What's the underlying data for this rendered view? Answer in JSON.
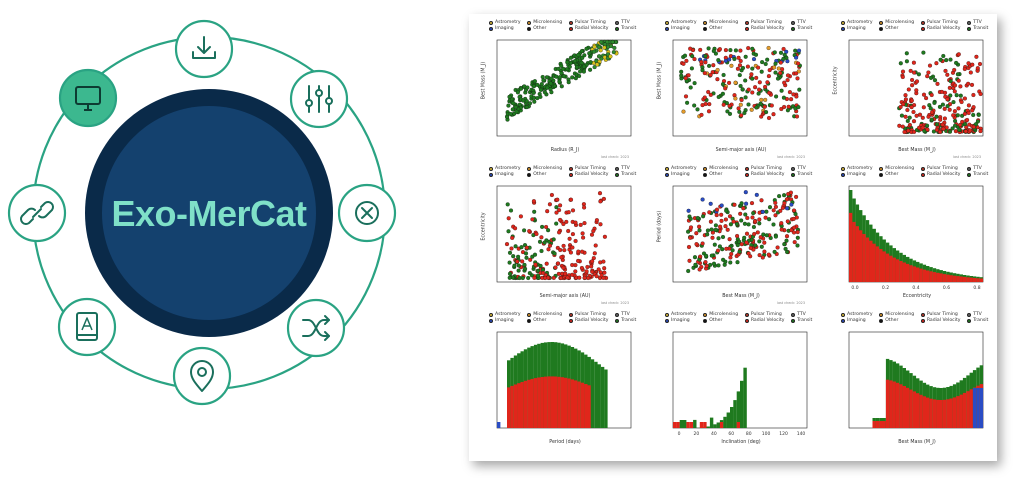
{
  "logo": {
    "title": "Exo-MerCat",
    "colors": {
      "ring": "#2aa383",
      "node_bg": "#ffffff",
      "node_active_bg": "#3cb88f",
      "disc_outer": "#0a2a49",
      "disc_inner": "#14416e",
      "text": "#7fe0c8"
    },
    "nodes": [
      {
        "name": "download-icon",
        "active": false
      },
      {
        "name": "sliders-icon",
        "active": false
      },
      {
        "name": "close-circle-icon",
        "active": false
      },
      {
        "name": "shuffle-icon",
        "active": false
      },
      {
        "name": "location-pin-icon",
        "active": false
      },
      {
        "name": "book-icon",
        "active": false
      },
      {
        "name": "link-icon",
        "active": false
      },
      {
        "name": "monitor-icon",
        "active": true
      }
    ]
  },
  "legend": {
    "items": [
      {
        "label": "Astrometry",
        "color": "#e3c13a"
      },
      {
        "label": "Microlensing",
        "color": "#e39b2a"
      },
      {
        "label": "Pulsar Timing",
        "color": "#c43a2a"
      },
      {
        "label": "TTV",
        "color": "#666666"
      },
      {
        "label": "Imaging",
        "color": "#2a4cc4"
      },
      {
        "label": "Other",
        "color": "#111111"
      },
      {
        "label": "Radial Velocity",
        "color": "#e0261b"
      },
      {
        "label": "Transit",
        "color": "#1f7a1f"
      }
    ]
  },
  "panels": [
    {
      "xlabel": "Radius (R_J)",
      "ylabel": "Best Mass (M_J)",
      "watermark": "last check: 2023"
    },
    {
      "xlabel": "Semi-major axis (AU)",
      "ylabel": "Best Mass (M_J)",
      "watermark": "last check: 2023"
    },
    {
      "xlabel": "Best Mass (M_J)",
      "ylabel": "Eccentricity",
      "watermark": "last check: 2023"
    },
    {
      "xlabel": "Semi-major axis (AU)",
      "ylabel": "Eccentricity",
      "watermark": "last check: 2023"
    },
    {
      "xlabel": "Best Mass (M_J)",
      "ylabel": "Period (days)",
      "watermark": "last check: 2023"
    },
    {
      "xlabel": "Eccentricity",
      "ylabel": "",
      "watermark": "",
      "ticks": [
        "0.0",
        "0.2",
        "0.4",
        "0.6",
        "0.8"
      ]
    },
    {
      "xlabel": "Period (days)",
      "ylabel": "",
      "watermark": ""
    },
    {
      "xlabel": "Inclination (deg)",
      "ylabel": "",
      "watermark": "",
      "ticks": [
        "0",
        "20",
        "40",
        "60",
        "80",
        "100",
        "120",
        "140"
      ]
    },
    {
      "xlabel": "Best Mass (M_J)",
      "ylabel": "",
      "watermark": ""
    }
  ]
}
